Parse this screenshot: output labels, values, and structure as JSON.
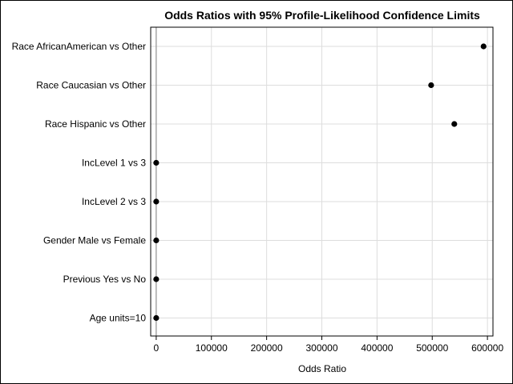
{
  "chart_data": {
    "type": "scatter",
    "title": "Odds Ratios with 95% Profile-Likelihood Confidence Limits",
    "xlabel": "Odds Ratio",
    "ylabel": "",
    "xlim": [
      -10000,
      610000
    ],
    "x_ticks": [
      0,
      100000,
      200000,
      300000,
      400000,
      500000,
      600000
    ],
    "x_tick_labels": [
      "0",
      "100000",
      "200000",
      "300000",
      "400000",
      "500000",
      "600000"
    ],
    "grid": true,
    "categories": [
      "Race AfricanAmerican vs Other",
      "Race Caucasian vs Other",
      "Race Hispanic vs Other",
      "IncLevel 1 vs 3",
      "IncLevel 2 vs 3",
      "Gender Male vs Female",
      "Previous Yes vs No",
      "Age units=10"
    ],
    "values": [
      593000,
      498000,
      540000,
      1,
      1,
      1,
      1,
      1
    ],
    "marker_color": "#000000",
    "reference_line_x": 1
  }
}
